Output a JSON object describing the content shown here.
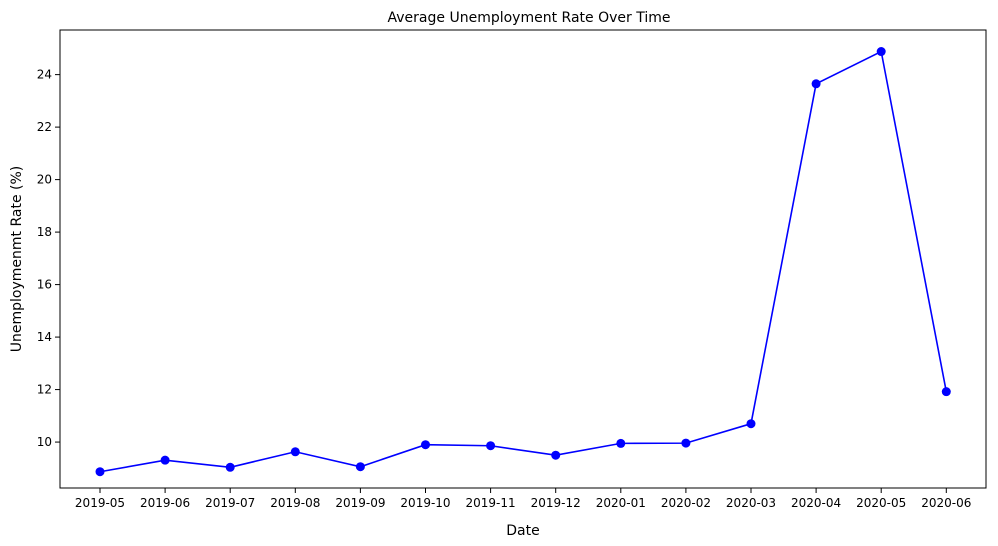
{
  "chart_data": {
    "type": "line",
    "title": "Average Unemployment Rate Over Time",
    "xlabel": "Date",
    "ylabel": "Unemploymenmt Rate (%)",
    "categories": [
      "2019-05",
      "2019-06",
      "2019-07",
      "2019-08",
      "2019-09",
      "2019-10",
      "2019-11",
      "2019-12",
      "2020-01",
      "2020-02",
      "2020-03",
      "2020-04",
      "2020-05",
      "2020-06"
    ],
    "series": [
      {
        "values": [
          8.87,
          9.31,
          9.04,
          9.63,
          9.06,
          9.9,
          9.86,
          9.5,
          9.95,
          9.96,
          10.7,
          23.65,
          24.88,
          11.92
        ],
        "color": "#0000ff",
        "marker": "circle"
      }
    ],
    "ylim": [
      8.25,
      25.7
    ],
    "yticks": [
      10,
      12,
      14,
      16,
      18,
      20,
      22,
      24
    ],
    "grid": false,
    "legend": "none"
  }
}
